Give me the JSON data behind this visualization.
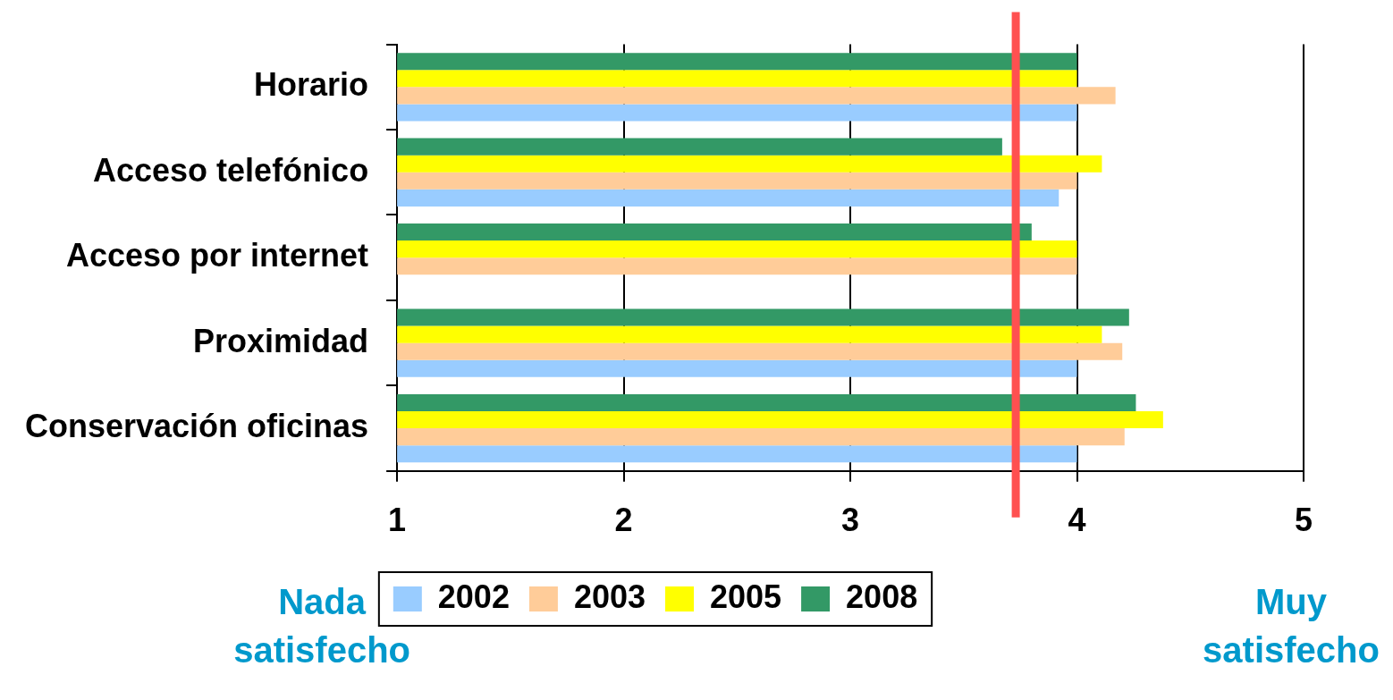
{
  "chart_data": {
    "type": "bar",
    "orientation": "horizontal",
    "categories": [
      "Horario",
      "Acceso telefónico",
      "Acceso por internet",
      "Proximidad",
      "Conservación oficinas"
    ],
    "series": [
      {
        "name": "2002",
        "color": "#99ccff",
        "values": [
          4.0,
          3.92,
          null,
          4.0,
          4.0
        ]
      },
      {
        "name": "2003",
        "color": "#ffcc99",
        "values": [
          4.17,
          4.0,
          4.0,
          4.2,
          4.21
        ]
      },
      {
        "name": "2005",
        "color": "#ffff00",
        "values": [
          4.0,
          4.11,
          4.0,
          4.11,
          4.38
        ]
      },
      {
        "name": "2008",
        "color": "#339966",
        "values": [
          4.0,
          3.67,
          3.8,
          4.23,
          4.26
        ]
      }
    ],
    "xlim": [
      1,
      5
    ],
    "xticks": [
      1,
      2,
      3,
      4,
      5
    ],
    "grid": "x",
    "legend": "bottom",
    "ref_lines": [
      {
        "axis": "x",
        "value": 3.73,
        "color": "#ff5050"
      }
    ],
    "annotations": [
      "Nada satisfecho",
      "Muy satisfecho"
    ]
  }
}
